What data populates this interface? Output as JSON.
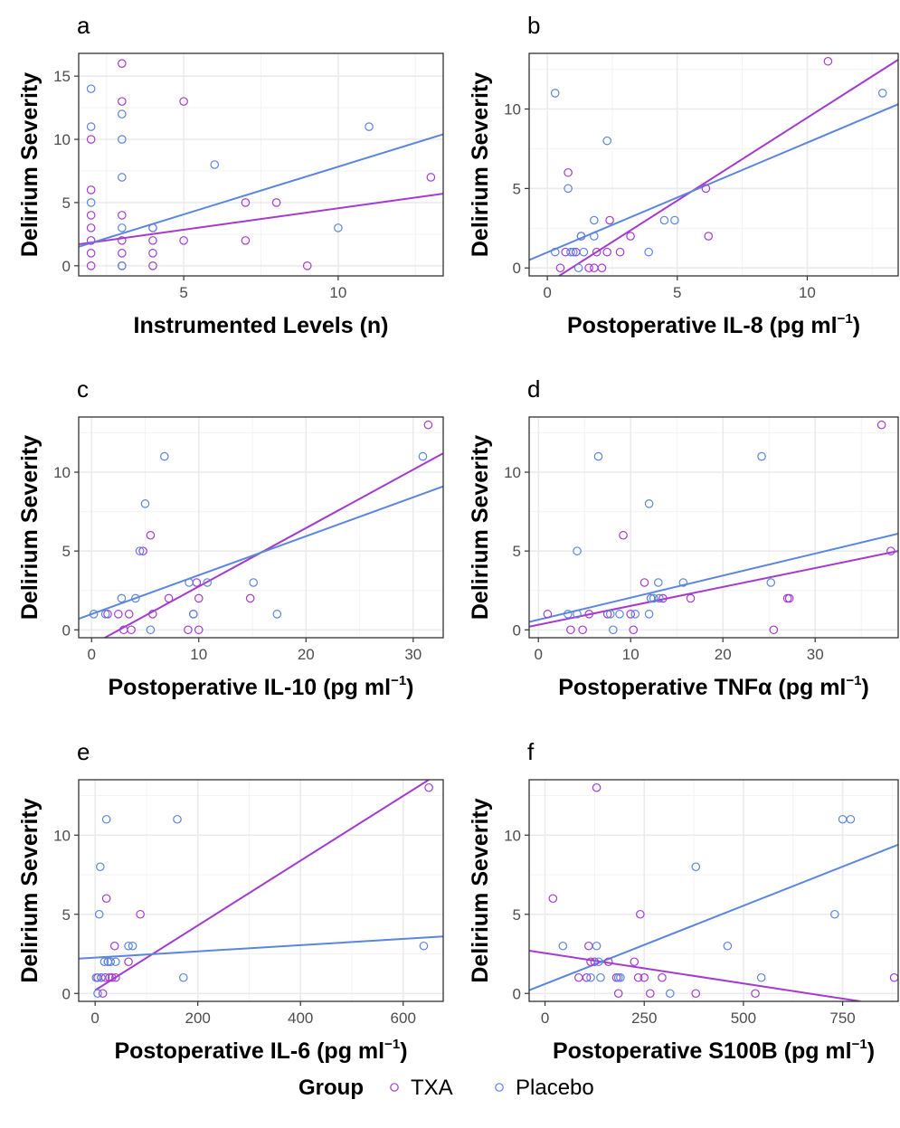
{
  "colors": {
    "TXA": "#a43bcf",
    "Placebo": "#5b86de",
    "grid": "#ebebeb",
    "frame": "#333333"
  },
  "legend": {
    "title": "Group",
    "items": [
      "TXA",
      "Placebo"
    ]
  },
  "chart_data": [
    {
      "type": "scatter",
      "panel": "a",
      "xlabel": "Instrumented Levels (n)",
      "xlabel_sup": "",
      "xlabel_suffix": "",
      "ylabel": "Delirium Severity",
      "xlim": [
        1.6,
        13.4
      ],
      "ylim": [
        -0.8,
        16.8
      ],
      "xticks": [
        5,
        10
      ],
      "yticks": [
        0,
        5,
        10,
        15
      ],
      "series": [
        {
          "name": "TXA",
          "points": [
            [
              2,
              10
            ],
            [
              2,
              6
            ],
            [
              2,
              4
            ],
            [
              2,
              3
            ],
            [
              2,
              2
            ],
            [
              2,
              1
            ],
            [
              2,
              0
            ],
            [
              3,
              16
            ],
            [
              3,
              13
            ],
            [
              3,
              4
            ],
            [
              3,
              2
            ],
            [
              3,
              1
            ],
            [
              3,
              0
            ],
            [
              4,
              3
            ],
            [
              4,
              2
            ],
            [
              4,
              1
            ],
            [
              4,
              0
            ],
            [
              5,
              13
            ],
            [
              5,
              2
            ],
            [
              7,
              5
            ],
            [
              7,
              2
            ],
            [
              8,
              5
            ],
            [
              9,
              0
            ],
            [
              13,
              7
            ]
          ],
          "fit": [
            [
              1.6,
              1.7
            ],
            [
              13.4,
              5.7
            ]
          ]
        },
        {
          "name": "Placebo",
          "points": [
            [
              2,
              14
            ],
            [
              2,
              11
            ],
            [
              2,
              5
            ],
            [
              3,
              12
            ],
            [
              3,
              10
            ],
            [
              3,
              7
            ],
            [
              3,
              3
            ],
            [
              3,
              0
            ],
            [
              4,
              3
            ],
            [
              6,
              8
            ],
            [
              10,
              3
            ],
            [
              11,
              11
            ]
          ],
          "fit": [
            [
              1.6,
              1.5
            ],
            [
              13.4,
              10.4
            ]
          ]
        }
      ]
    },
    {
      "type": "scatter",
      "panel": "b",
      "xlabel": "Postoperative IL-8 (pg ml",
      "xlabel_sup": "−1",
      "xlabel_suffix": ")",
      "ylabel": "Delirium Severity",
      "xlim": [
        -0.7,
        13.5
      ],
      "ylim": [
        -0.5,
        13.5
      ],
      "xticks": [
        0,
        5,
        10
      ],
      "yticks": [
        0,
        5,
        10
      ],
      "series": [
        {
          "name": "TXA",
          "points": [
            [
              0.5,
              0
            ],
            [
              0.7,
              1
            ],
            [
              0.8,
              6
            ],
            [
              1.1,
              1
            ],
            [
              1.3,
              2
            ],
            [
              1.6,
              0
            ],
            [
              1.8,
              0
            ],
            [
              1.9,
              1
            ],
            [
              2.1,
              0
            ],
            [
              2.3,
              1
            ],
            [
              2.4,
              3
            ],
            [
              2.8,
              1
            ],
            [
              3.2,
              2
            ],
            [
              6.1,
              5
            ],
            [
              6.2,
              2
            ],
            [
              10.8,
              13
            ]
          ],
          "fit": [
            [
              -0.7,
              -1.7
            ],
            [
              13.5,
              13.1
            ]
          ]
        },
        {
          "name": "Placebo",
          "points": [
            [
              0.3,
              11
            ],
            [
              0.3,
              1
            ],
            [
              0.8,
              5
            ],
            [
              0.9,
              1
            ],
            [
              1.0,
              1
            ],
            [
              1.2,
              0
            ],
            [
              1.3,
              2
            ],
            [
              1.4,
              1
            ],
            [
              1.8,
              3
            ],
            [
              1.8,
              2
            ],
            [
              2.3,
              8
            ],
            [
              3.9,
              1
            ],
            [
              4.5,
              3
            ],
            [
              4.9,
              3
            ],
            [
              12.9,
              11
            ]
          ],
          "fit": [
            [
              -0.7,
              0.5
            ],
            [
              13.5,
              10.3
            ]
          ]
        }
      ]
    },
    {
      "type": "scatter",
      "panel": "c",
      "xlabel": "Postoperative IL-10 (pg ml",
      "xlabel_sup": "−1",
      "xlabel_suffix": ")",
      "ylabel": "Delirium Severity",
      "xlim": [
        -1.2,
        32.8
      ],
      "ylim": [
        -0.5,
        13.5
      ],
      "xticks": [
        0,
        10,
        20,
        30
      ],
      "yticks": [
        0,
        5,
        10
      ],
      "series": [
        {
          "name": "TXA",
          "points": [
            [
              1.5,
              1
            ],
            [
              2.5,
              1
            ],
            [
              3,
              0
            ],
            [
              3.5,
              1
            ],
            [
              3.7,
              0
            ],
            [
              4.8,
              5
            ],
            [
              5.5,
              6
            ],
            [
              5.7,
              1
            ],
            [
              7.2,
              2
            ],
            [
              9,
              0
            ],
            [
              9.5,
              1
            ],
            [
              9.8,
              3
            ],
            [
              10,
              2
            ],
            [
              10,
              0
            ],
            [
              14.8,
              2
            ],
            [
              31.4,
              13
            ]
          ],
          "fit": [
            [
              -1.2,
              -1.4
            ],
            [
              32.8,
              11.2
            ]
          ]
        },
        {
          "name": "Placebo",
          "points": [
            [
              0.2,
              1
            ],
            [
              1.3,
              1
            ],
            [
              2.8,
              2
            ],
            [
              4.1,
              2
            ],
            [
              4.5,
              5
            ],
            [
              5,
              8
            ],
            [
              5.5,
              0
            ],
            [
              6.8,
              11
            ],
            [
              9.1,
              3
            ],
            [
              9.5,
              1
            ],
            [
              10.8,
              3
            ],
            [
              15.1,
              3
            ],
            [
              17.3,
              1
            ],
            [
              30.9,
              11
            ]
          ],
          "fit": [
            [
              -1.2,
              0.7
            ],
            [
              32.8,
              9.1
            ]
          ]
        }
      ]
    },
    {
      "type": "scatter",
      "panel": "d",
      "xlabel": "Postoperative TNFα (pg ml",
      "xlabel_sup": "−1",
      "xlabel_suffix": ")",
      "ylabel": "Delirium Severity",
      "xlim": [
        -1,
        39
      ],
      "ylim": [
        -0.5,
        13.5
      ],
      "xticks": [
        0,
        10,
        20,
        30
      ],
      "yticks": [
        0,
        5,
        10
      ],
      "series": [
        {
          "name": "TXA",
          "points": [
            [
              1,
              1
            ],
            [
              3.5,
              0
            ],
            [
              4.8,
              0
            ],
            [
              5.5,
              1
            ],
            [
              7.5,
              1
            ],
            [
              9.2,
              6
            ],
            [
              10,
              1
            ],
            [
              10.3,
              0
            ],
            [
              11.5,
              3
            ],
            [
              12.2,
              2
            ],
            [
              13.5,
              2
            ],
            [
              16.5,
              2
            ],
            [
              25.5,
              0
            ],
            [
              27,
              2
            ],
            [
              27.2,
              2
            ],
            [
              37.2,
              13
            ],
            [
              38.2,
              5
            ]
          ],
          "fit": [
            [
              -1,
              0.2
            ],
            [
              39,
              5.0
            ]
          ]
        },
        {
          "name": "Placebo",
          "points": [
            [
              3.2,
              1
            ],
            [
              4.2,
              1
            ],
            [
              4.2,
              5
            ],
            [
              6.5,
              11
            ],
            [
              7.8,
              1
            ],
            [
              8.1,
              0
            ],
            [
              8.8,
              1
            ],
            [
              10.5,
              1
            ],
            [
              12,
              8
            ],
            [
              12,
              1
            ],
            [
              12.2,
              2
            ],
            [
              12.5,
              2
            ],
            [
              13,
              3
            ],
            [
              13.1,
              2
            ],
            [
              15.7,
              3
            ],
            [
              24.2,
              11
            ],
            [
              25.2,
              3
            ]
          ],
          "fit": [
            [
              -1,
              0.5
            ],
            [
              39,
              6.1
            ]
          ]
        }
      ]
    },
    {
      "type": "scatter",
      "panel": "e",
      "xlabel": "Postoperative IL-6 (pg ml",
      "xlabel_sup": "−1",
      "xlabel_suffix": ")",
      "ylabel": "Delirium Severity",
      "xlim": [
        -32,
        678
      ],
      "ylim": [
        -0.5,
        13.5
      ],
      "xticks": [
        0,
        200,
        400,
        600
      ],
      "yticks": [
        0,
        5,
        10
      ],
      "series": [
        {
          "name": "TXA",
          "points": [
            [
              5,
              1
            ],
            [
              12,
              1
            ],
            [
              15,
              0
            ],
            [
              20,
              1
            ],
            [
              22,
              6
            ],
            [
              25,
              2
            ],
            [
              28,
              1
            ],
            [
              33,
              1
            ],
            [
              38,
              3
            ],
            [
              40,
              1
            ],
            [
              65,
              2
            ],
            [
              88,
              5
            ],
            [
              650,
              13
            ]
          ],
          "fit": [
            [
              0,
              0.2
            ],
            [
              650,
              13.5
            ]
          ]
        },
        {
          "name": "Placebo",
          "points": [
            [
              2,
              1
            ],
            [
              5,
              0
            ],
            [
              8,
              5
            ],
            [
              10,
              8
            ],
            [
              12,
              1
            ],
            [
              18,
              2
            ],
            [
              22,
              11
            ],
            [
              25,
              2
            ],
            [
              30,
              2
            ],
            [
              40,
              2
            ],
            [
              65,
              3
            ],
            [
              73,
              3
            ],
            [
              160,
              11
            ],
            [
              172,
              1
            ],
            [
              640,
              3
            ]
          ],
          "fit": [
            [
              -32,
              2.2
            ],
            [
              678,
              3.6
            ]
          ]
        }
      ]
    },
    {
      "type": "scatter",
      "panel": "f",
      "xlabel": "Postoperative S100B (pg ml",
      "xlabel_sup": "−1",
      "xlabel_suffix": ")",
      "ylabel": "Delirium Severity",
      "xlim": [
        -40,
        890
      ],
      "ylim": [
        -0.5,
        13.5
      ],
      "xticks": [
        0,
        250,
        500,
        750
      ],
      "yticks": [
        0,
        5,
        10
      ],
      "series": [
        {
          "name": "TXA",
          "points": [
            [
              20,
              6
            ],
            [
              85,
              1
            ],
            [
              105,
              1
            ],
            [
              110,
              3
            ],
            [
              115,
              2
            ],
            [
              125,
              2
            ],
            [
              130,
              13
            ],
            [
              160,
              2
            ],
            [
              180,
              1
            ],
            [
              185,
              0
            ],
            [
              225,
              2
            ],
            [
              235,
              1
            ],
            [
              240,
              5
            ],
            [
              250,
              1
            ],
            [
              265,
              0
            ],
            [
              295,
              1
            ],
            [
              380,
              0
            ],
            [
              530,
              0
            ],
            [
              880,
              1
            ]
          ],
          "fit": [
            [
              -40,
              2.7
            ],
            [
              795,
              -0.5
            ]
          ]
        },
        {
          "name": "Placebo",
          "points": [
            [
              45,
              3
            ],
            [
              115,
              1
            ],
            [
              130,
              3
            ],
            [
              135,
              2
            ],
            [
              140,
              1
            ],
            [
              185,
              1
            ],
            [
              190,
              1
            ],
            [
              315,
              0
            ],
            [
              380,
              8
            ],
            [
              460,
              3
            ],
            [
              545,
              1
            ],
            [
              730,
              5
            ],
            [
              750,
              11
            ],
            [
              770,
              11
            ]
          ],
          "fit": [
            [
              -40,
              0.2
            ],
            [
              890,
              9.4
            ]
          ]
        }
      ]
    }
  ]
}
